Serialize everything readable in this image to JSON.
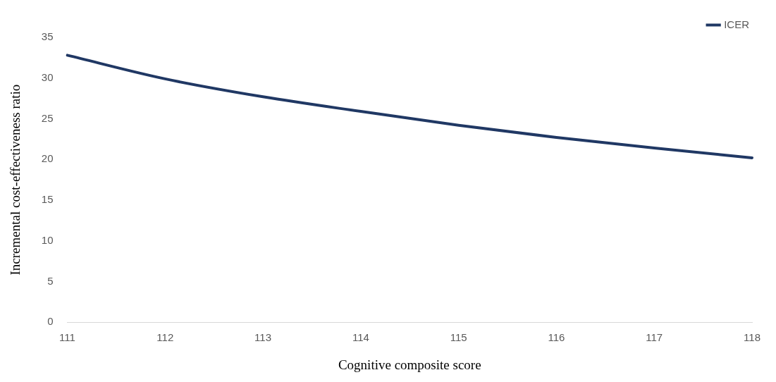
{
  "chart_data": {
    "type": "line",
    "xlabel": "Cognitive composite score",
    "ylabel": "Incremental cost-effectiveness ratio",
    "categories": [
      "111",
      "112",
      "113",
      "114",
      "115",
      "116",
      "117",
      "118"
    ],
    "series": [
      {
        "name": "ICER",
        "color": "#203864",
        "values": [
          32.8,
          29.9,
          27.7,
          25.9,
          24.2,
          22.7,
          21.4,
          20.2
        ]
      }
    ],
    "ylim": [
      0,
      35
    ],
    "yticks": [
      0,
      5,
      10,
      15,
      20,
      25,
      30,
      35
    ],
    "grid": false,
    "legend": "top right",
    "marker": "none",
    "line_style": "solid"
  }
}
